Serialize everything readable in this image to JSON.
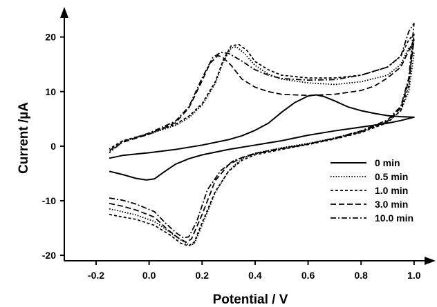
{
  "chart_data": {
    "type": "line",
    "title": "",
    "xlabel": "Potential / V",
    "ylabel": "Current /µA",
    "xlim": [
      -0.32,
      1.05
    ],
    "ylim": [
      -21,
      24
    ],
    "xticks": [
      {
        "value": -0.2,
        "label": "-0.2"
      },
      {
        "value": 0.0,
        "label": "0.0"
      },
      {
        "value": 0.2,
        "label": "0.2"
      },
      {
        "value": 0.4,
        "label": "0.4"
      },
      {
        "value": 0.6,
        "label": "0.6"
      },
      {
        "value": 0.8,
        "label": "0.8"
      },
      {
        "value": 1.0,
        "label": "1.0"
      }
    ],
    "yticks": [
      {
        "value": -20,
        "label": "-20"
      },
      {
        "value": -10,
        "label": "-10"
      },
      {
        "value": 0,
        "label": "0"
      },
      {
        "value": 10,
        "label": "10"
      },
      {
        "value": 20,
        "label": "20"
      }
    ],
    "grid": false,
    "legend_position": "bottom-right",
    "series": [
      {
        "name": "0 min",
        "dash": "",
        "width": 2.0,
        "points": [
          [
            -0.15,
            -4.6
          ],
          [
            -0.1,
            -5.2
          ],
          [
            -0.05,
            -5.9
          ],
          [
            -0.01,
            -6.2
          ],
          [
            0.02,
            -6.0
          ],
          [
            0.06,
            -4.6
          ],
          [
            0.1,
            -3.3
          ],
          [
            0.15,
            -2.3
          ],
          [
            0.2,
            -1.6
          ],
          [
            0.3,
            -0.6
          ],
          [
            0.4,
            0.2
          ],
          [
            0.5,
            1.0
          ],
          [
            0.6,
            2.0
          ],
          [
            0.7,
            2.8
          ],
          [
            0.8,
            3.5
          ],
          [
            0.9,
            4.2
          ],
          [
            0.95,
            4.7
          ],
          [
            1.0,
            5.3
          ],
          [
            0.95,
            5.4
          ],
          [
            0.9,
            5.6
          ],
          [
            0.85,
            6.0
          ],
          [
            0.8,
            6.5
          ],
          [
            0.75,
            7.2
          ],
          [
            0.7,
            8.3
          ],
          [
            0.66,
            9.1
          ],
          [
            0.63,
            9.4
          ],
          [
            0.6,
            9.2
          ],
          [
            0.55,
            8.0
          ],
          [
            0.5,
            6.2
          ],
          [
            0.45,
            4.2
          ],
          [
            0.4,
            2.9
          ],
          [
            0.35,
            1.9
          ],
          [
            0.3,
            1.2
          ],
          [
            0.2,
            0.2
          ],
          [
            0.1,
            -0.6
          ],
          [
            0.0,
            -1.2
          ],
          [
            -0.1,
            -1.7
          ],
          [
            -0.15,
            -2.2
          ]
        ]
      },
      {
        "name": "0.5 min",
        "dash": "1.6 2.2",
        "width": 1.8,
        "points": [
          [
            -0.15,
            -11.5
          ],
          [
            -0.12,
            -11.8
          ],
          [
            -0.05,
            -12.6
          ],
          [
            0.02,
            -13.8
          ],
          [
            0.08,
            -15.8
          ],
          [
            0.12,
            -17.2
          ],
          [
            0.15,
            -18.1
          ],
          [
            0.17,
            -17.9
          ],
          [
            0.2,
            -14.5
          ],
          [
            0.25,
            -8.5
          ],
          [
            0.3,
            -4.5
          ],
          [
            0.35,
            -2.3
          ],
          [
            0.4,
            -1.3
          ],
          [
            0.5,
            -0.3
          ],
          [
            0.6,
            0.5
          ],
          [
            0.7,
            1.5
          ],
          [
            0.8,
            2.7
          ],
          [
            0.9,
            4.5
          ],
          [
            0.95,
            6.5
          ],
          [
            0.98,
            10.0
          ],
          [
            1.0,
            17.0
          ],
          [
            0.98,
            18.0
          ],
          [
            0.95,
            15.0
          ],
          [
            0.9,
            13.0
          ],
          [
            0.8,
            11.8
          ],
          [
            0.7,
            11.3
          ],
          [
            0.6,
            11.6
          ],
          [
            0.5,
            12.3
          ],
          [
            0.45,
            13.2
          ],
          [
            0.4,
            14.8
          ],
          [
            0.36,
            17.0
          ],
          [
            0.33,
            18.2
          ],
          [
            0.31,
            18.0
          ],
          [
            0.28,
            15.5
          ],
          [
            0.25,
            11.5
          ],
          [
            0.2,
            7.5
          ],
          [
            0.15,
            5.2
          ],
          [
            0.1,
            3.8
          ],
          [
            0.0,
            2.2
          ],
          [
            -0.1,
            0.9
          ],
          [
            -0.15,
            -1.0
          ]
        ]
      },
      {
        "name": "1.0 min",
        "dash": "4 3",
        "width": 1.8,
        "points": [
          [
            -0.15,
            -12.5
          ],
          [
            -0.12,
            -12.8
          ],
          [
            -0.05,
            -13.4
          ],
          [
            0.02,
            -14.5
          ],
          [
            0.08,
            -16.3
          ],
          [
            0.12,
            -17.8
          ],
          [
            0.15,
            -18.3
          ],
          [
            0.17,
            -17.6
          ],
          [
            0.2,
            -14.0
          ],
          [
            0.25,
            -8.3
          ],
          [
            0.3,
            -4.6
          ],
          [
            0.35,
            -2.6
          ],
          [
            0.4,
            -1.6
          ],
          [
            0.5,
            -0.6
          ],
          [
            0.6,
            0.3
          ],
          [
            0.7,
            1.3
          ],
          [
            0.8,
            2.5
          ],
          [
            0.9,
            4.3
          ],
          [
            0.95,
            6.5
          ],
          [
            0.98,
            11.0
          ],
          [
            1.0,
            20.5
          ],
          [
            0.98,
            19.5
          ],
          [
            0.95,
            16.5
          ],
          [
            0.9,
            14.5
          ],
          [
            0.8,
            13.0
          ],
          [
            0.7,
            12.5
          ],
          [
            0.6,
            12.5
          ],
          [
            0.5,
            13.0
          ],
          [
            0.45,
            14.0
          ],
          [
            0.4,
            15.5
          ],
          [
            0.37,
            17.5
          ],
          [
            0.34,
            18.6
          ],
          [
            0.31,
            18.4
          ],
          [
            0.28,
            15.8
          ],
          [
            0.25,
            11.8
          ],
          [
            0.2,
            7.8
          ],
          [
            0.15,
            5.5
          ],
          [
            0.1,
            4.0
          ],
          [
            0.0,
            2.3
          ],
          [
            -0.1,
            1.0
          ],
          [
            -0.15,
            -0.5
          ]
        ]
      },
      {
        "name": "3.0 min",
        "dash": "8 4",
        "width": 1.8,
        "points": [
          [
            -0.15,
            -10.5
          ],
          [
            -0.1,
            -11.0
          ],
          [
            -0.05,
            -11.7
          ],
          [
            0.02,
            -13.0
          ],
          [
            0.07,
            -15.3
          ],
          [
            0.11,
            -16.8
          ],
          [
            0.14,
            -17.6
          ],
          [
            0.16,
            -17.0
          ],
          [
            0.2,
            -12.5
          ],
          [
            0.25,
            -6.3
          ],
          [
            0.3,
            -3.4
          ],
          [
            0.35,
            -2.1
          ],
          [
            0.4,
            -1.3
          ],
          [
            0.5,
            -0.4
          ],
          [
            0.6,
            0.4
          ],
          [
            0.7,
            1.4
          ],
          [
            0.8,
            2.6
          ],
          [
            0.9,
            4.6
          ],
          [
            0.95,
            7.0
          ],
          [
            0.98,
            12.0
          ],
          [
            1.0,
            19.5
          ],
          [
            0.98,
            17.5
          ],
          [
            0.95,
            14.5
          ],
          [
            0.9,
            12.5
          ],
          [
            0.85,
            11.0
          ],
          [
            0.8,
            10.2
          ],
          [
            0.7,
            9.5
          ],
          [
            0.6,
            9.3
          ],
          [
            0.5,
            9.5
          ],
          [
            0.45,
            10.0
          ],
          [
            0.4,
            10.8
          ],
          [
            0.35,
            12.3
          ],
          [
            0.31,
            14.8
          ],
          [
            0.28,
            16.2
          ],
          [
            0.26,
            16.6
          ],
          [
            0.23,
            15.2
          ],
          [
            0.2,
            12.0
          ],
          [
            0.15,
            7.0
          ],
          [
            0.1,
            4.3
          ],
          [
            0.0,
            2.2
          ],
          [
            -0.1,
            0.7
          ],
          [
            -0.15,
            -0.8
          ]
        ]
      },
      {
        "name": "10.0 min",
        "dash": "8 3 2 3",
        "width": 1.8,
        "points": [
          [
            -0.15,
            -9.5
          ],
          [
            -0.1,
            -9.9
          ],
          [
            -0.05,
            -10.6
          ],
          [
            0.02,
            -12.0
          ],
          [
            0.06,
            -14.0
          ],
          [
            0.1,
            -15.8
          ],
          [
            0.13,
            -16.8
          ],
          [
            0.15,
            -16.6
          ],
          [
            0.18,
            -13.8
          ],
          [
            0.22,
            -8.0
          ],
          [
            0.27,
            -4.5
          ],
          [
            0.32,
            -2.6
          ],
          [
            0.4,
            -1.4
          ],
          [
            0.5,
            -0.5
          ],
          [
            0.6,
            0.4
          ],
          [
            0.7,
            1.5
          ],
          [
            0.8,
            2.8
          ],
          [
            0.9,
            4.8
          ],
          [
            0.95,
            7.3
          ],
          [
            0.98,
            12.5
          ],
          [
            1.0,
            22.5
          ],
          [
            0.98,
            21.0
          ],
          [
            0.95,
            16.5
          ],
          [
            0.9,
            14.5
          ],
          [
            0.8,
            13.0
          ],
          [
            0.7,
            12.2
          ],
          [
            0.6,
            12.1
          ],
          [
            0.5,
            12.4
          ],
          [
            0.45,
            13.0
          ],
          [
            0.4,
            14.0
          ],
          [
            0.35,
            15.6
          ],
          [
            0.3,
            17.0
          ],
          [
            0.27,
            17.2
          ],
          [
            0.24,
            16.2
          ],
          [
            0.2,
            12.5
          ],
          [
            0.15,
            7.2
          ],
          [
            0.1,
            4.6
          ],
          [
            0.0,
            2.4
          ],
          [
            -0.1,
            0.8
          ],
          [
            -0.15,
            -1.2
          ]
        ]
      }
    ]
  }
}
